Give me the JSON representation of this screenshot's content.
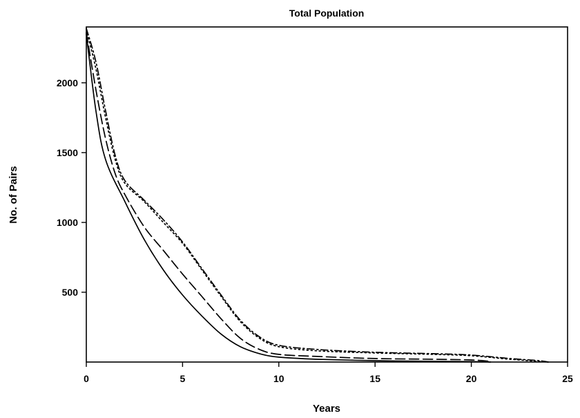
{
  "chart_data": {
    "type": "line",
    "title": "Total Population",
    "xlabel": "Years",
    "ylabel": "No. of Pairs",
    "xlim": [
      0,
      25
    ],
    "ylim": [
      0,
      2400
    ],
    "xticks": [
      0,
      5,
      10,
      15,
      20,
      25
    ],
    "yticks": [
      500,
      1000,
      1500,
      2000
    ],
    "grid": false,
    "legend": "none",
    "series": [
      {
        "style": "solid",
        "points": [
          [
            0,
            2350
          ],
          [
            0.5,
            1800
          ],
          [
            1,
            1450
          ],
          [
            2,
            1150
          ],
          [
            3,
            880
          ],
          [
            4,
            660
          ],
          [
            5,
            480
          ],
          [
            6,
            330
          ],
          [
            7,
            200
          ],
          [
            8,
            110
          ],
          [
            9,
            60
          ],
          [
            10,
            35
          ],
          [
            12,
            20
          ],
          [
            15,
            10
          ],
          [
            18,
            5
          ],
          [
            20,
            3
          ],
          [
            21,
            0
          ]
        ]
      },
      {
        "style": "dashed",
        "points": [
          [
            0,
            2360
          ],
          [
            0.5,
            1950
          ],
          [
            1,
            1600
          ],
          [
            1.5,
            1350
          ],
          [
            2,
            1200
          ],
          [
            3,
            970
          ],
          [
            4,
            800
          ],
          [
            5,
            630
          ],
          [
            6,
            470
          ],
          [
            7,
            310
          ],
          [
            8,
            170
          ],
          [
            9,
            90
          ],
          [
            10,
            55
          ],
          [
            12,
            40
          ],
          [
            15,
            25
          ],
          [
            18,
            20
          ],
          [
            20,
            15
          ],
          [
            21,
            5
          ]
        ]
      },
      {
        "style": "dotted",
        "points": [
          [
            0,
            2380
          ],
          [
            0.5,
            2100
          ],
          [
            1,
            1750
          ],
          [
            1.5,
            1450
          ],
          [
            2,
            1280
          ],
          [
            3,
            1150
          ],
          [
            4,
            1000
          ],
          [
            5,
            850
          ],
          [
            6,
            660
          ],
          [
            7,
            470
          ],
          [
            8,
            290
          ],
          [
            9,
            170
          ],
          [
            10,
            110
          ],
          [
            12,
            80
          ],
          [
            15,
            65
          ],
          [
            18,
            55
          ],
          [
            20,
            45
          ],
          [
            22,
            20
          ],
          [
            23.5,
            5
          ],
          [
            24,
            0
          ]
        ]
      },
      {
        "style": "dash-dot",
        "points": [
          [
            0,
            2390
          ],
          [
            0.5,
            2150
          ],
          [
            1,
            1800
          ],
          [
            1.5,
            1480
          ],
          [
            2,
            1300
          ],
          [
            3,
            1160
          ],
          [
            4,
            1020
          ],
          [
            5,
            860
          ],
          [
            6,
            670
          ],
          [
            7,
            480
          ],
          [
            8,
            300
          ],
          [
            9,
            180
          ],
          [
            10,
            120
          ],
          [
            12,
            90
          ],
          [
            15,
            70
          ],
          [
            18,
            60
          ],
          [
            20,
            50
          ],
          [
            22,
            25
          ],
          [
            23.5,
            10
          ],
          [
            24,
            0
          ]
        ]
      }
    ]
  }
}
